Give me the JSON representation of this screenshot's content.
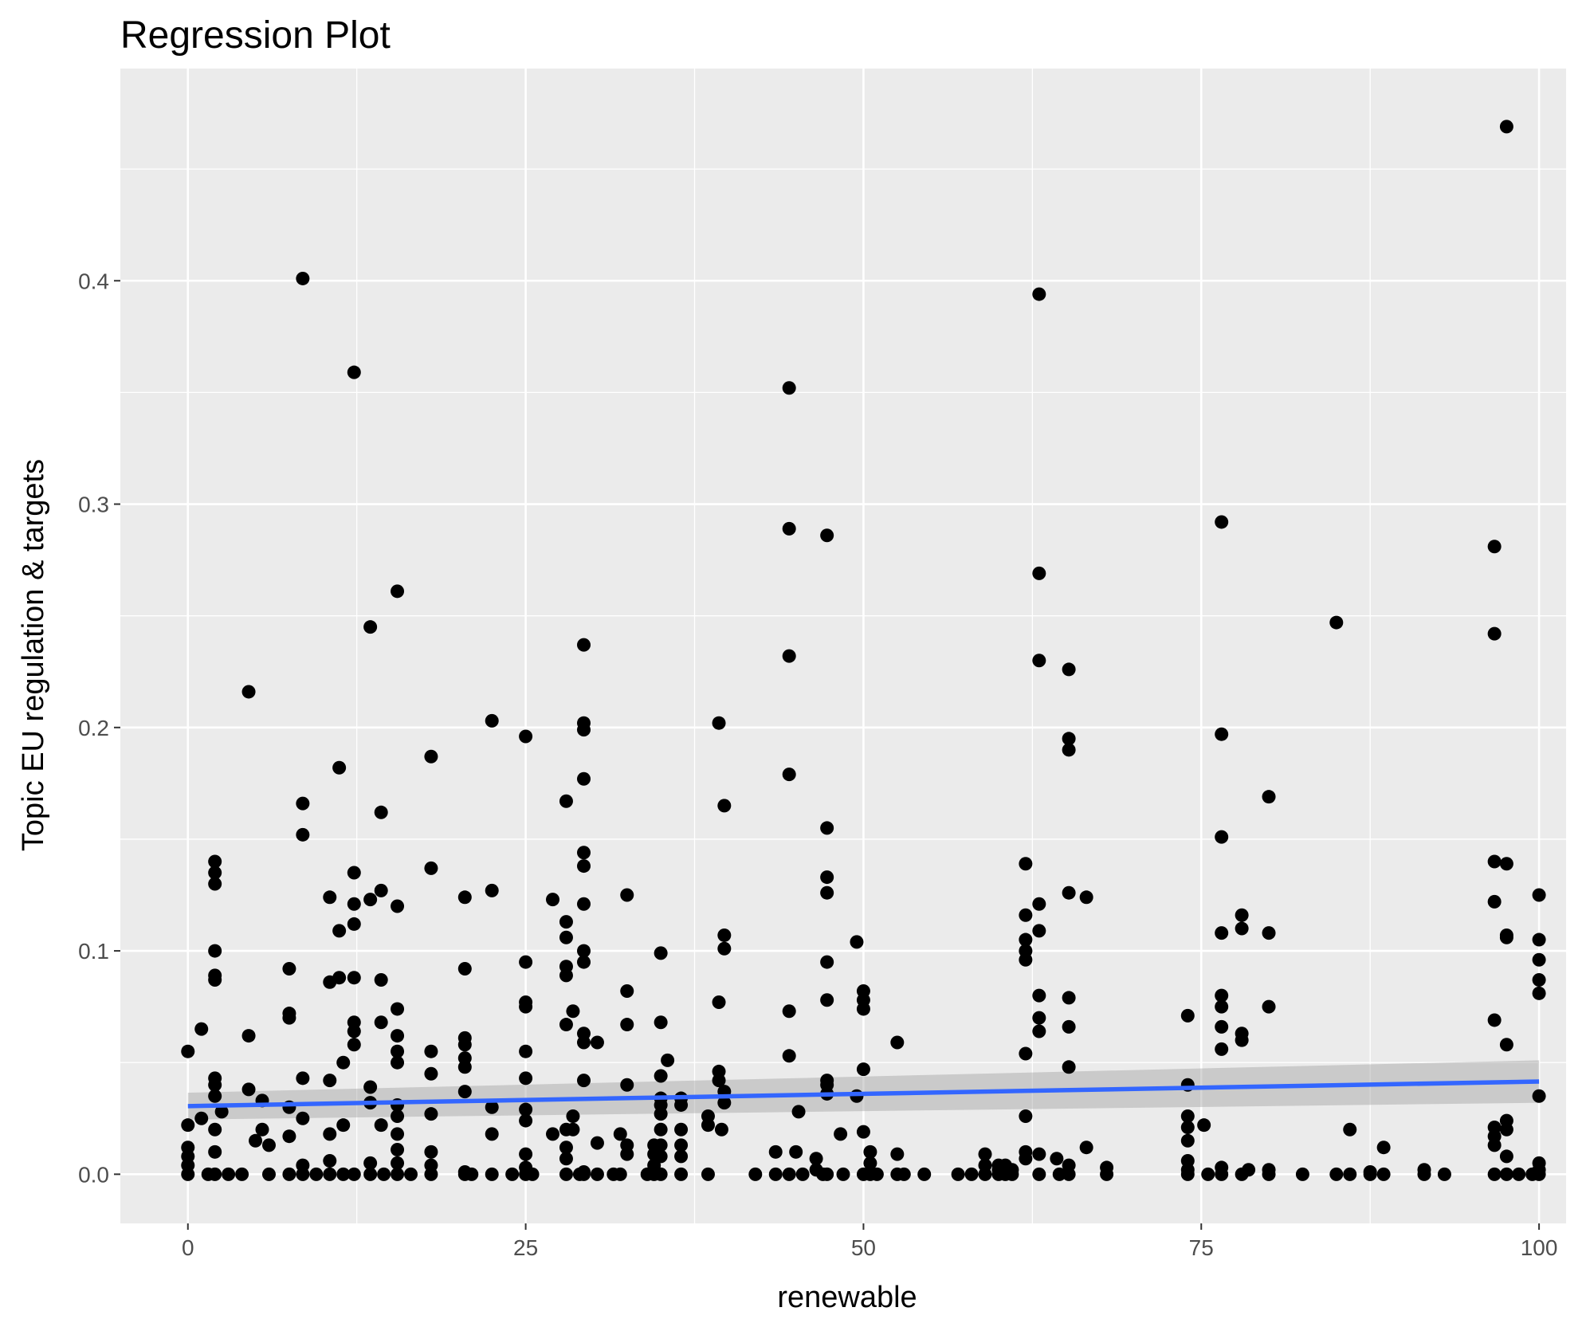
{
  "chart_data": {
    "type": "scatter",
    "title": "Regression Plot",
    "xlabel": "renewable",
    "ylabel": "Topic EU regulation & targets",
    "xlim": [
      -5,
      102
    ],
    "ylim": [
      -0.022,
      0.495
    ],
    "x_ticks": [
      0,
      25,
      50,
      75,
      100
    ],
    "x_tick_labels": [
      "0",
      "25",
      "50",
      "75",
      "100"
    ],
    "y_ticks": [
      0.0,
      0.1,
      0.2,
      0.3,
      0.4
    ],
    "y_tick_labels": [
      "0.0",
      "0.1",
      "0.2",
      "0.3",
      "0.4"
    ],
    "grid": true,
    "background": "#ebebeb",
    "point_color": "#000000",
    "regression": {
      "line_color": "#3366ff",
      "band_color": "#999999",
      "x": [
        0,
        100
      ],
      "y": [
        0.0305,
        0.0415
      ],
      "band_low": [
        0.0245,
        0.032
      ],
      "band_high": [
        0.0365,
        0.051
      ]
    },
    "points": [
      [
        0,
        0.055
      ],
      [
        0,
        0.022
      ],
      [
        0,
        0.012
      ],
      [
        0,
        0.008
      ],
      [
        0,
        0.004
      ],
      [
        0,
        0.0
      ],
      [
        1,
        0.065
      ],
      [
        1,
        0.025
      ],
      [
        1.5,
        0.0
      ],
      [
        2,
        0.043
      ],
      [
        2,
        0.04
      ],
      [
        2,
        0.035
      ],
      [
        2,
        0.02
      ],
      [
        2,
        0.01
      ],
      [
        2,
        0.0
      ],
      [
        2,
        0.14
      ],
      [
        2,
        0.135
      ],
      [
        2,
        0.13
      ],
      [
        2,
        0.1
      ],
      [
        2,
        0.089
      ],
      [
        2,
        0.087
      ],
      [
        2.5,
        0.028
      ],
      [
        3,
        0.0
      ],
      [
        4,
        0.0
      ],
      [
        4.5,
        0.216
      ],
      [
        4.5,
        0.062
      ],
      [
        4.5,
        0.038
      ],
      [
        5,
        0.015
      ],
      [
        5.5,
        0.033
      ],
      [
        5.5,
        0.02
      ],
      [
        6,
        0.013
      ],
      [
        6,
        0.0
      ],
      [
        7.5,
        0.092
      ],
      [
        7.5,
        0.072
      ],
      [
        7.5,
        0.07
      ],
      [
        7.5,
        0.03
      ],
      [
        7.5,
        0.017
      ],
      [
        7.5,
        0.0
      ],
      [
        8.5,
        0.401
      ],
      [
        8.5,
        0.166
      ],
      [
        8.5,
        0.152
      ],
      [
        8.5,
        0.043
      ],
      [
        8.5,
        0.025
      ],
      [
        8.5,
        0.004
      ],
      [
        8.5,
        0.0
      ],
      [
        9.5,
        0.0
      ],
      [
        10.5,
        0.124
      ],
      [
        10.5,
        0.086
      ],
      [
        10.5,
        0.042
      ],
      [
        10.5,
        0.018
      ],
      [
        10.5,
        0.006
      ],
      [
        10.5,
        0.0
      ],
      [
        11.2,
        0.182
      ],
      [
        11.2,
        0.109
      ],
      [
        11.2,
        0.088
      ],
      [
        11.5,
        0.05
      ],
      [
        11.5,
        0.022
      ],
      [
        11.5,
        0.0
      ],
      [
        12.3,
        0.359
      ],
      [
        12.3,
        0.135
      ],
      [
        12.3,
        0.121
      ],
      [
        12.3,
        0.112
      ],
      [
        12.3,
        0.088
      ],
      [
        12.3,
        0.068
      ],
      [
        12.3,
        0.064
      ],
      [
        12.3,
        0.058
      ],
      [
        12.3,
        0.0
      ],
      [
        13.5,
        0.245
      ],
      [
        13.5,
        0.123
      ],
      [
        13.5,
        0.039
      ],
      [
        13.5,
        0.032
      ],
      [
        13.5,
        0.005
      ],
      [
        13.5,
        0.0
      ],
      [
        14.3,
        0.162
      ],
      [
        14.3,
        0.127
      ],
      [
        14.3,
        0.087
      ],
      [
        14.3,
        0.068
      ],
      [
        14.3,
        0.022
      ],
      [
        14.5,
        0.0
      ],
      [
        15.5,
        0.261
      ],
      [
        15.5,
        0.12
      ],
      [
        15.5,
        0.074
      ],
      [
        15.5,
        0.062
      ],
      [
        15.5,
        0.055
      ],
      [
        15.5,
        0.05
      ],
      [
        15.5,
        0.031
      ],
      [
        15.5,
        0.026
      ],
      [
        15.5,
        0.018
      ],
      [
        15.5,
        0.011
      ],
      [
        15.5,
        0.005
      ],
      [
        15.5,
        0.0
      ],
      [
        16.5,
        0.0
      ],
      [
        18,
        0.187
      ],
      [
        18,
        0.137
      ],
      [
        18,
        0.055
      ],
      [
        18,
        0.045
      ],
      [
        18,
        0.027
      ],
      [
        18,
        0.01
      ],
      [
        18,
        0.004
      ],
      [
        18,
        0.0
      ],
      [
        20.5,
        0.124
      ],
      [
        20.5,
        0.092
      ],
      [
        20.5,
        0.061
      ],
      [
        20.5,
        0.058
      ],
      [
        20.5,
        0.052
      ],
      [
        20.5,
        0.048
      ],
      [
        20.5,
        0.037
      ],
      [
        20.5,
        0.001
      ],
      [
        20.5,
        0.0
      ],
      [
        21,
        0.0
      ],
      [
        22.5,
        0.203
      ],
      [
        22.5,
        0.127
      ],
      [
        22.5,
        0.03
      ],
      [
        22.5,
        0.018
      ],
      [
        22.5,
        0.0
      ],
      [
        24,
        0.0
      ],
      [
        25,
        0.196
      ],
      [
        25,
        0.095
      ],
      [
        25,
        0.077
      ],
      [
        25,
        0.075
      ],
      [
        25,
        0.055
      ],
      [
        25,
        0.043
      ],
      [
        25,
        0.029
      ],
      [
        25,
        0.024
      ],
      [
        25,
        0.009
      ],
      [
        25,
        0.003
      ],
      [
        25,
        0.0
      ],
      [
        25.5,
        0.0
      ],
      [
        27,
        0.123
      ],
      [
        27,
        0.018
      ],
      [
        28,
        0.167
      ],
      [
        28,
        0.113
      ],
      [
        28,
        0.106
      ],
      [
        28,
        0.093
      ],
      [
        28,
        0.089
      ],
      [
        28,
        0.067
      ],
      [
        28,
        0.02
      ],
      [
        28,
        0.012
      ],
      [
        28,
        0.007
      ],
      [
        28,
        0.0
      ],
      [
        28.5,
        0.073
      ],
      [
        28.5,
        0.026
      ],
      [
        28.5,
        0.02
      ],
      [
        29,
        0.0
      ],
      [
        29.3,
        0.237
      ],
      [
        29.3,
        0.202
      ],
      [
        29.3,
        0.199
      ],
      [
        29.3,
        0.177
      ],
      [
        29.3,
        0.144
      ],
      [
        29.3,
        0.138
      ],
      [
        29.3,
        0.121
      ],
      [
        29.3,
        0.1
      ],
      [
        29.3,
        0.095
      ],
      [
        29.3,
        0.063
      ],
      [
        29.3,
        0.059
      ],
      [
        29.3,
        0.042
      ],
      [
        29.3,
        0.001
      ],
      [
        29.3,
        0.0
      ],
      [
        30.3,
        0.059
      ],
      [
        30.3,
        0.014
      ],
      [
        30.3,
        0.0
      ],
      [
        31.5,
        0.0
      ],
      [
        32,
        0.018
      ],
      [
        32,
        0.0
      ],
      [
        32.5,
        0.125
      ],
      [
        32.5,
        0.082
      ],
      [
        32.5,
        0.067
      ],
      [
        32.5,
        0.04
      ],
      [
        32.5,
        0.013
      ],
      [
        32.5,
        0.009
      ],
      [
        34,
        0.0
      ],
      [
        34.5,
        0.013
      ],
      [
        34.5,
        0.009
      ],
      [
        34.5,
        0.004
      ],
      [
        34.5,
        0.0
      ],
      [
        35,
        0.099
      ],
      [
        35,
        0.068
      ],
      [
        35,
        0.044
      ],
      [
        35,
        0.034
      ],
      [
        35,
        0.031
      ],
      [
        35,
        0.027
      ],
      [
        35,
        0.02
      ],
      [
        35,
        0.013
      ],
      [
        35,
        0.008
      ],
      [
        35,
        0.0
      ],
      [
        35.5,
        0.051
      ],
      [
        36.5,
        0.034
      ],
      [
        36.5,
        0.031
      ],
      [
        36.5,
        0.02
      ],
      [
        36.5,
        0.013
      ],
      [
        36.5,
        0.008
      ],
      [
        36.5,
        0.0
      ],
      [
        38.5,
        0.026
      ],
      [
        38.5,
        0.022
      ],
      [
        38.5,
        0.0
      ],
      [
        39.3,
        0.202
      ],
      [
        39.3,
        0.077
      ],
      [
        39.3,
        0.046
      ],
      [
        39.3,
        0.042
      ],
      [
        39.5,
        0.02
      ],
      [
        39.7,
        0.165
      ],
      [
        39.7,
        0.107
      ],
      [
        39.7,
        0.101
      ],
      [
        39.7,
        0.037
      ],
      [
        39.7,
        0.032
      ],
      [
        42,
        0.0
      ],
      [
        43.5,
        0.01
      ],
      [
        43.5,
        0.0
      ],
      [
        44.5,
        0.352
      ],
      [
        44.5,
        0.289
      ],
      [
        44.5,
        0.232
      ],
      [
        44.5,
        0.179
      ],
      [
        44.5,
        0.073
      ],
      [
        44.5,
        0.053
      ],
      [
        44.5,
        0.0
      ],
      [
        45,
        0.01
      ],
      [
        45.2,
        0.028
      ],
      [
        45.5,
        0.0
      ],
      [
        46.5,
        0.007
      ],
      [
        46.5,
        0.002
      ],
      [
        47,
        0.0
      ],
      [
        47.3,
        0.286
      ],
      [
        47.3,
        0.155
      ],
      [
        47.3,
        0.133
      ],
      [
        47.3,
        0.126
      ],
      [
        47.3,
        0.095
      ],
      [
        47.3,
        0.078
      ],
      [
        47.3,
        0.042
      ],
      [
        47.3,
        0.04
      ],
      [
        47.3,
        0.036
      ],
      [
        47.3,
        0.0
      ],
      [
        48.3,
        0.018
      ],
      [
        48.5,
        0.0
      ],
      [
        49.5,
        0.104
      ],
      [
        49.5,
        0.035
      ],
      [
        50,
        0.082
      ],
      [
        50,
        0.078
      ],
      [
        50,
        0.074
      ],
      [
        50,
        0.047
      ],
      [
        50,
        0.019
      ],
      [
        50,
        0.0
      ],
      [
        50.5,
        0.01
      ],
      [
        50.5,
        0.005
      ],
      [
        50.5,
        0.0
      ],
      [
        51,
        0.0
      ],
      [
        52.5,
        0.059
      ],
      [
        52.5,
        0.009
      ],
      [
        52.5,
        0.0
      ],
      [
        53,
        0.0
      ],
      [
        54.5,
        0.0
      ],
      [
        57,
        0.0
      ],
      [
        58,
        0.0
      ],
      [
        59,
        0.009
      ],
      [
        59,
        0.004
      ],
      [
        59,
        0.0
      ],
      [
        60,
        0.004
      ],
      [
        60,
        0.002
      ],
      [
        60,
        0.0
      ],
      [
        60.5,
        0.004
      ],
      [
        60.5,
        0.0
      ],
      [
        61,
        0.002
      ],
      [
        61,
        0.0
      ],
      [
        62,
        0.139
      ],
      [
        62,
        0.116
      ],
      [
        62,
        0.105
      ],
      [
        62,
        0.1
      ],
      [
        62,
        0.096
      ],
      [
        62,
        0.054
      ],
      [
        62,
        0.026
      ],
      [
        62,
        0.01
      ],
      [
        62,
        0.007
      ],
      [
        63,
        0.394
      ],
      [
        63,
        0.269
      ],
      [
        63,
        0.23
      ],
      [
        63,
        0.121
      ],
      [
        63,
        0.109
      ],
      [
        63,
        0.08
      ],
      [
        63,
        0.07
      ],
      [
        63,
        0.064
      ],
      [
        63,
        0.009
      ],
      [
        63,
        0.0
      ],
      [
        64.3,
        0.007
      ],
      [
        64.5,
        0.0
      ],
      [
        65.2,
        0.226
      ],
      [
        65.2,
        0.195
      ],
      [
        65.2,
        0.19
      ],
      [
        65.2,
        0.126
      ],
      [
        65.2,
        0.079
      ],
      [
        65.2,
        0.066
      ],
      [
        65.2,
        0.048
      ],
      [
        65.2,
        0.004
      ],
      [
        65.2,
        0.0
      ],
      [
        66.5,
        0.124
      ],
      [
        66.5,
        0.012
      ],
      [
        68,
        0.003
      ],
      [
        68,
        0.0
      ],
      [
        74,
        0.071
      ],
      [
        74,
        0.04
      ],
      [
        74,
        0.026
      ],
      [
        74,
        0.021
      ],
      [
        74,
        0.015
      ],
      [
        74,
        0.006
      ],
      [
        74,
        0.002
      ],
      [
        74,
        0.0
      ],
      [
        75.2,
        0.022
      ],
      [
        75.5,
        0.0
      ],
      [
        76.5,
        0.292
      ],
      [
        76.5,
        0.197
      ],
      [
        76.5,
        0.151
      ],
      [
        76.5,
        0.108
      ],
      [
        76.5,
        0.08
      ],
      [
        76.5,
        0.075
      ],
      [
        76.5,
        0.066
      ],
      [
        76.5,
        0.056
      ],
      [
        76.5,
        0.003
      ],
      [
        76.5,
        0.0
      ],
      [
        78,
        0.116
      ],
      [
        78,
        0.11
      ],
      [
        78,
        0.063
      ],
      [
        78,
        0.06
      ],
      [
        78,
        0.0
      ],
      [
        78.5,
        0.002
      ],
      [
        80,
        0.169
      ],
      [
        80,
        0.108
      ],
      [
        80,
        0.075
      ],
      [
        80,
        0.002
      ],
      [
        80,
        0.0
      ],
      [
        82.5,
        0.0
      ],
      [
        85,
        0.247
      ],
      [
        85,
        0.0
      ],
      [
        86,
        0.02
      ],
      [
        86,
        0.0
      ],
      [
        87.5,
        0.001
      ],
      [
        87.5,
        0.0
      ],
      [
        88.5,
        0.012
      ],
      [
        88.5,
        0.0
      ],
      [
        91.5,
        0.002
      ],
      [
        91.5,
        0.0
      ],
      [
        93,
        0.0
      ],
      [
        96.7,
        0.281
      ],
      [
        96.7,
        0.242
      ],
      [
        96.7,
        0.14
      ],
      [
        96.7,
        0.122
      ],
      [
        96.7,
        0.069
      ],
      [
        96.7,
        0.021
      ],
      [
        96.7,
        0.017
      ],
      [
        96.7,
        0.013
      ],
      [
        96.7,
        0.0
      ],
      [
        97.6,
        0.469
      ],
      [
        97.6,
        0.139
      ],
      [
        97.6,
        0.107
      ],
      [
        97.6,
        0.106
      ],
      [
        97.6,
        0.058
      ],
      [
        97.6,
        0.024
      ],
      [
        97.6,
        0.02
      ],
      [
        97.6,
        0.008
      ],
      [
        97.6,
        0.0
      ],
      [
        98.5,
        0.0
      ],
      [
        99.5,
        0.0
      ],
      [
        100,
        0.125
      ],
      [
        100,
        0.105
      ],
      [
        100,
        0.096
      ],
      [
        100,
        0.087
      ],
      [
        100,
        0.081
      ],
      [
        100,
        0.035
      ],
      [
        100,
        0.005
      ],
      [
        100,
        0.002
      ],
      [
        100,
        0.0
      ]
    ]
  }
}
